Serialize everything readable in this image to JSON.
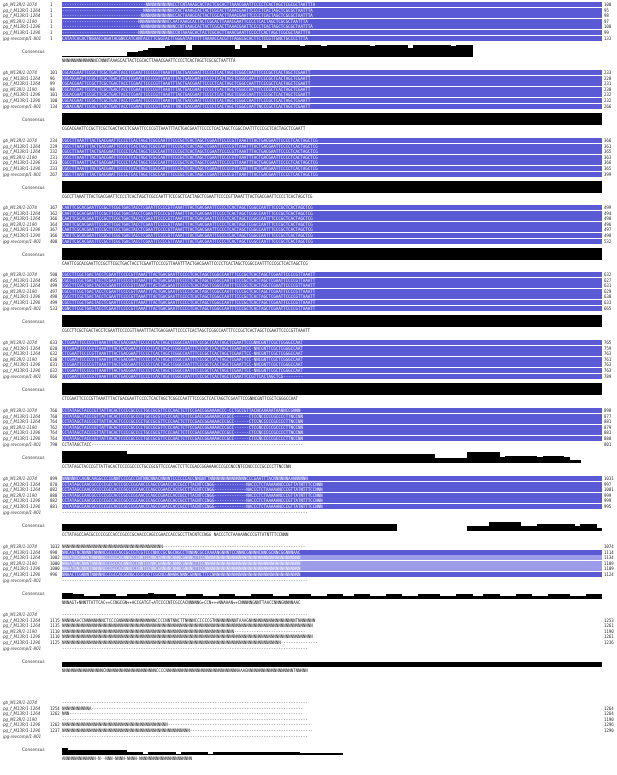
{
  "sequence_names": [
    "gb_M13R/1-1074",
    "pg_f_M13R/1-1264",
    "pg_f_M13R/1-1264",
    "pg_M13R/1-1190",
    "pg_f_M13R/1-1296",
    "pg_f_M13R/1-1290",
    "jpg-revcomp/1-801"
  ],
  "consensus_label": "Consensus",
  "colors": {
    "identity_dark": "#5a5ad6",
    "identity_light": "#9c9ce8",
    "consensus_bar": "#000000"
  },
  "blocks": [
    {
      "starts": [
        "1",
        "1",
        "1",
        "1",
        "1",
        "1",
        "1"
      ],
      "ends": [
        "100",
        "95",
        "98",
        "97",
        "100",
        "99",
        "133"
      ],
      "seqs": [
        "----------------------------------NNNNNNNNNNNCCTCNTAAAGCACTACTCGCACTTAAACGAATTCCCCTCACTAGCTCGCGCTAATTTA",
        "---------------------------------NNNNNNNNNNNNCCACTAAAGCACTACTCGCACTTAAACGAATTCCCCTCACTAGCTCGCGCTAATTTA",
        "--------------------------------NNNNNNNNNNNNNCCACTAAAGCACTACTCGCACTTAAACGAATTCCCCTCACTAGCTCGCGCTAATTTA",
        "-------------------------------NNNNNNNNNNNNCCAATAAAGCACTACTCGCACTTAAACGAATTCCCCTCACTAGCTCGCGCTAATTTA",
        "--------------------------------NNNNNNNNNNNNNNCCNTAAAGCACTACTCGCACTTAAACGAATTCCCCTCACTAGCTCGCGCTAATTTA",
        "-------------------------------NNNNNNNNNNNNNNCCNTAAAGCACTACTCGCACTTAAACGAATTCCCCTCACTAGCTCGCGCTAATTTA",
        "CATATCACACTNGAACCAGATACGNCCATCANTACCTTCGGTACTTGGGATAATTTTTAAAACCACGTTTAGGCGCACTTCTCCGTTGNCTGCCCCTTTA"
      ],
      "consensus_text": "NNNNNNNNNNNNNNCCNNNTAAAGCACTACTCGCACTTAAACGAATTCCCCTCACTAGCTCGCGCTAATTTA",
      "consensus_levels": [
        0.1,
        0.1,
        0.1,
        0.1,
        0.1,
        0.1,
        0.1,
        0.1,
        0.1,
        0.1,
        0.1,
        0.1,
        0.4,
        0.4,
        0.5,
        0.6,
        0.8,
        0.8,
        0.8,
        0.9,
        1,
        1,
        1,
        0.6,
        1,
        1,
        1,
        1,
        1,
        1,
        1,
        1,
        0.7,
        1,
        1,
        1,
        1,
        0.8,
        1,
        1,
        1,
        1,
        1,
        1,
        0.9,
        1,
        1,
        1,
        0.9,
        1,
        1,
        1,
        1,
        1,
        1,
        1,
        1,
        0.9,
        1,
        1,
        1,
        1,
        1,
        1,
        0.8,
        1,
        1,
        1,
        1,
        1,
        1,
        1,
        0.9,
        1,
        1,
        1
      ]
    },
    {
      "starts": [
        "101",
        "96",
        "99",
        "98",
        "101",
        "100",
        "134"
      ],
      "ends": [
        "233",
        "228",
        "231",
        "230",
        "232",
        "232",
        "266"
      ],
      "seqs": [
        "CGCACGAATTCCGCTTCGCTGACTACCTCGAATTCCCCGTTAAATTTACTGACGAATTCCCCTCACTAGCTCGGCCAATTTCCCGCTCACTAGCTCGAATT",
        "CGCACGAATTCCGCTTCGCTGACTACCTCGAATTCCCCGTTAAATTTACTGACGAATTCCCCTCACTAGCTCGGCCAATTTCCCGCTCACTAGCTCGAATT",
        "CGCACGAATTCCGCTTCGCTGACTACCTCGAATTCCCCGTTAAATTTACTGACGAATTCCCCTCACTAGCTCGGCCAATTTCCCGCTCACTAGCTCGAATT",
        "CGCACGAATTCCGCTTCGCTGACTACCTCGAATTCCCCGTTAAATTTACTGACGAATTCCCCTCACTAGCTCGGCCAATTTCCCGCTCACTAGCTCGAATT",
        "CGCACGAATTCCGCTTCGCTGACTACCTCGAATTCCCCGTTAAATTTACTGACGAATTCCCCTCACTAGCTCGGCCAATTTCCCGCTCACTAGCTCGAATT",
        "CGCACGAATTCCGCTTCGCTGACTACCTCGAATTCCCCGTTAAATTTACTGACGAATTCCCCTCACTAGCTCGGCCAATTTCCCGCTCACTAGCTCGAATT",
        "CGNACGNATTCCGCTTCGCTGACTACCTCGAATTCCCCGTTAAATTTNCTGACGAATTCCCCTCACTAGCTCGGCCAATTNCCCGCTCACTAGCTCGAATT"
      ],
      "consensus_text": "CGCACGAATTCCGCTTCGCTGACTACCTCGAATTCCCCGTTAAATTTACTGACGAATTCCCCTCACTAGCTCGGCCAATTTCCCGCTCACTAGCTCGAATT",
      "consensus_levels": [
        1
      ]
    },
    {
      "starts": [
        "234",
        "229",
        "232",
        "231",
        "233",
        "233",
        "267"
      ],
      "ends": [
        "366",
        "361",
        "365",
        "363",
        "366",
        "365",
        "399"
      ],
      "seqs": [
        "CGCCTTAAATTTACTGACGAATTCCCCTCACTAGCTCGCCAATTTCCCGCTCACTAGCTCGAATTCCCCGTTAAATTTACTGACGAATTCCCCTCACTAGCTCG",
        "CGCCTTAAATTTACTGACGAATTCCCCTCACTAGCTCGCCAATTTCCCGCTCACTAGCTCGAATTCCCCGTTAAATTTACTGACGAATTCCCCTCACTAGCTCG",
        "CGCCTTAAATTTACTGACGAATTCCCCTCACTAGCTCGCCAATTTCCCGCTCACTAGCTCGAATTCCCCGTTAAATTTACTGACGAATTCCCCTCACTAGCTCG",
        "CGCCTTAAATTTACTGACGAATTCCCCTCACTAGCTCGCCAATTTCCCGCTCACTAGCTCGAATTCCCCGTTAAATTTACTGACGAATTCCCCTCACTAGCTCG",
        "CGCCTTAAATTTACTGACGAATTCCCCTCACTAGCTCGCCAATTTCCCGCTCACTAGCTCGAATTCCCCGTTAAATTTACTGACGAATTCCCCTCACTAGCTCG",
        "CGCCTTAAATTTACTGACGAATTCCCCTCACTAGCTCGCCAATTTCCCGCTCACTAGCTCGAATTCCCCGTTAAATTTACTGACGAATTCCCCTCACTAGCTCG",
        "CGCCTTAAATTTACTGACGAATTCCCCTCACTAGCTCGCCAATTTCCCGCTCACTAGCTCGAATTCCCCGTTAAATTTACTGACGAATTCCCCTCACTAGCTCG"
      ],
      "consensus_text": "CGCCTTAAATTTACTGACGAATTCCCCTCACTAGCTCGCCAATTTCCCGCTCACTAGCTCGAATTCCCCGTTAAATTTACTGACGAATTCCCCTCACTAGCTCG",
      "consensus_levels": [
        1
      ]
    },
    {
      "starts": [
        "367",
        "362",
        "366",
        "364",
        "367",
        "366",
        "400"
      ],
      "ends": [
        "499",
        "494",
        "498",
        "496",
        "497",
        "498",
        "532"
      ],
      "seqs": [
        "CAATTCGCACGAATTCCGCTTCGCTGACTACCTCGAATTCCCCGTTAAATTTACTGACGAATTCCCCTCACTAGCTCGGCCAATTTCCCGCTCACTAGCTCG",
        "CAATTCGCACGAATTCCGCTTCGCTGACTACCTCGAATTCCCCGTTAAATTTACTGACGAATTCCCCTCACTAGCTCGGCCAATTTCCCGCTCACTAGCTCG",
        "CAATTCGCACGAATTCCGCTTCGCTGACTACCTCGAATTCCCCGTTAAATTTACTGACGAATTCCCCTCACTAGCTCGGCCAATTTCCCGCTCACTAGCTCG",
        "CAATTCGCACGAATTCCGCTTCGCTGACTACCTCGAATTCCCCGTTAAATTTACTGACGAATTCCCCTCACTAGCTCGGCCAATTTCCCGCTCACTAGCTCG",
        "CAATTCGCACGAATTCCGCTTCGCTGACTACCTCGAATTCCCCGTTAAATTTACTGACGAATTCCCCTCACTAGCTCGGCCAATTTCCCGCTCACTAGCTCG",
        "CAATTCGCACGAATTCCGCTTCGCTGACTACCTCGAATTCCCCGTTAAATTTACTGACGAATTCCCCTCACTAGCTCGGCCAATTTCCCGCTCACTAGCTCG",
        "CAATTCGCACGAATTCCGCTTCGCTGACTACCTCGAATTCCCCGTTAAATTTACTGACGAATTCCCCTCACTAGCTCGGCCAATTTCCCGCTCACTAGCTCG"
      ],
      "consensus_text": "CAATTCGCACGAATTCCGCTTCGCTGACTACCTCGAATTCCCCGTTAAATTTACTGACGAATTCCCCTCACTAGCTCGGCCAATTTCCCGCTCACTAGCTCG",
      "consensus_levels": [
        1
      ]
    },
    {
      "starts": [
        "500",
        "495",
        "499",
        "497",
        "498",
        "499",
        "533"
      ],
      "ends": [
        "632",
        "627",
        "631",
        "629",
        "630",
        "631",
        "665"
      ],
      "seqs": [
        "CGCCTTCGCTGACTACCTCGAATTCCCCGTTAAATTTACTGACGAATTCCCCTCACTAGCTCGGCCAATTTCCCGCTCACTAGCTCGAATTCCCCGTTAAATT",
        "CGCCTTCGCTGACTACCTCGAATTCCCCGTTAAATTTACTGACGAATTCCCCTCACTAGCTCGGCCAATTTCCCGCTCACTAGCTCGAATTCCCCGTTAAATT",
        "CGCCTTCGCTGACTACCTCGAATTCCCCGTTAAATTTACTGACGAATTCCCCTCACTAGCTCGGCCAATTTCCCGCTCACTAGCTCGAATTCCCCGTTAAATT",
        "CGCCTTCGCTGACTACCTCGAATTCCCCGTTAAATTTACTGACGAATTCCCCTCACTAGCTCGGCCAATTTCCCGCTCACTAGCTCGAATTCCCCGTTAAATT",
        "CGCCTTCGCTGACTACCTCGAATTCCCCGTTAAATTTACTGACGAATTCCCCTCACTAGCTCGGCCAATTTCCCGCTCACTAGCTCGAATTCCCCGTTAAATT",
        "CGCCTTCGCTGACTACCTCGAATTCCCCGTTAAATTTACTGACGAATTCCCCTCACTAGCTCGGCCAATTTCCCGCTCACTAGCTCGAATTCCCCGTTAAATT",
        "CGNCTTCGCTGACTACCTCGAATTCCCCGTTAAATTTACTGACGAATTCCCCTCACTAGCTCGGCCAATTTCCCGCTCACTAGCTCGAATTCCCCGTTAAATT"
      ],
      "consensus_text": "CGCCTTCGCTGACTACCTCGAATTCCCCGTTAAATTTACTGACGAATTCCCCTCACTAGCTCGGCCAATTTCCCGCTCACTAGCTCGAATTCCCCGTTAAATT",
      "consensus_levels": [
        1
      ]
    },
    {
      "starts": [
        "633",
        "628",
        "632",
        "630",
        "631",
        "632",
        "666"
      ],
      "ends": [
        "765",
        "759",
        "763",
        "761",
        "763",
        "763",
        "789"
      ],
      "seqs": [
        "CTCGAATTCCCCGTTAAATTTACTGACGAATTCCCCTCACTAGCTCGGCCAATTTCCCGCTCACTAGCTCGAATTCCGNNCGNTTCGCTCGGGCCAAT",
        "CTCGAATTCCCCGTTAAATTTACTGACGAATTCCCCTCACTAGCTCGGCCAATTTCCCGCTCACTAGCTCGAATTCC-NNCGNTTCGCTCGGGCCAAT",
        "CTCGAATTCCCCGTTAAATTTACTGACGAATTCCCCTCACTAGCTCGGCCAATTTCCCGCTCACTAGCTCGAATTCC-NNCGNTTCGCTCGGGCCAAT",
        "CTCGAATTCCCCGTTAAATTTACTGACGAATTCCCCTCACTAGCTCGGCCAATTTCCCGCTCACTAGCTCGAATTCC-NNCGNTTCGCTCGGGCCAAT",
        "CTCGAATTCCCCGTTAAATTTACTGACGAATTCCCCTCACTAGCTCGGCCAATTTCCCGCTCACTAGCTCGAATTCC-NNCGNTTCGCTCGGGCCAAT",
        "CTCGAATTCCCCGTTAAATTTACTGACGAATTCCCCTCACTAGCTCGGCCAATTTCCCGCTCACTAGCTCGAATTCC-NNCGNTTCGCTCGGGCCAAT",
        "CTCGAATTCCCCGTTAAATTTACTGACGAATTCCCCTCACTAGCTCGGCCAATTTCCCGCTCACTAGCTCGAATTCCGTTCACTAGCTCG--------"
      ],
      "consensus_text": "CTCGAATTCCCCGTTAAATTTACTGACGAATTCCCCTCACTAGCTCGGCCAATTTCCCGCTCACTAGCTCGAATTCCGNNCGNTTCGCTCGGGCCAAT",
      "consensus_levels": [
        1
      ]
    },
    {
      "starts": [
        "766",
        "760",
        "764",
        "762",
        "764",
        "764",
        "790"
      ],
      "ends": [
        "898",
        "877",
        "881",
        "879",
        "881",
        "880",
        "801"
      ],
      "seqs": [
        "CCTATAGCTACCCGTTATTACACTCCCCGCCCCTGCCGCGTTCCCAACTCTTCCGACCGGAAAACCC-CCTGCCGTTACNCAAAAATAANNCCGNNN",
        "CCTATAGCTACCCGTTATTACACTCCCCGCCCCTGCCGCGTTCCCAACTCTTCCGACCGGAAAACCCGCC------CTCCNCCCCCGCCCCTTNCCNN",
        "CCTATAGCTACCCGTTATTACACTCCCCGCCCCTGCCGCGTTCCCAACTCTTCCGACCGGAAAACCCGCC------CTCCNCCCCCGCCCCTTNCCNN",
        "CCTATAGCTACCCGTTATTACACTCCCCGCCCCTGCCGCGTTCCCAACTCTTCCGACCGGAAAACCCGCC------CTCCNCCCCCGCCCCTTNCCNN",
        "CCTATAGCTACCCGTTATTACACTCCCCGCCCCTGCCGCGTTCCCAACTCTTCCGACCGGAAAACCCGCC------CTCCNCCCCCGCCCCTTNCCNN",
        "CCTATAGCTACCCGTTATTACACTCCCCGCCCCTGCCGCGTTCCCAACTCTTCCGACCGGAAAACCCGCC------CTCCNCCCCCGCCCCTTNCCNN",
        "CCTATAGCTACC--------------------------------------------------------------------------------------"
      ],
      "consensus_text": "CCTATAGCTACCCGTTATTACACTCCCCGCCCCTGCCGCGTTCCCAACTCTTCCGACCGGAAAACCCGCCNCCNTCCNCCCCCGCCCCTTNCCNN",
      "consensus_levels": [
        1,
        1,
        1,
        1,
        1,
        1,
        1,
        1,
        1,
        1,
        1,
        1,
        0.8,
        0.8,
        0.8,
        0.8,
        0.8,
        0.8,
        0.8,
        0.8,
        0.8,
        0.8,
        0.8,
        0.8,
        0.8,
        0.8,
        0.8,
        0.8,
        0.8,
        0.8,
        0.8,
        0.8,
        0.8,
        0.8,
        0.8,
        0.8,
        0.8,
        0.8,
        0.8,
        0.8,
        0.8,
        0.8,
        0.8,
        0.8,
        0.8,
        0.8,
        0.8,
        0.8,
        0.8,
        0.8,
        0.8,
        0.8,
        0.8,
        0.8,
        0.8,
        0.8,
        0.8,
        0.8,
        0.8,
        0.8,
        0.8,
        0.8,
        0.8,
        0.8,
        0.8,
        0.8,
        0.8,
        0.8,
        0.8,
        0.4,
        0.4,
        0.4,
        0.4,
        0.4,
        0.4,
        0.9,
        0.9,
        0.9,
        0.9,
        0.9,
        0.9,
        0.5,
        0.6,
        0.6,
        0.6,
        0.6,
        0.6,
        0.6,
        0.5,
        0.6,
        0.6,
        0.6,
        0.6,
        0.5,
        0.3,
        0.3
      ]
    },
    {
      "starts": [
        "899",
        "878",
        "882",
        "880",
        "882",
        "881",
        ""
      ],
      "ends": [
        "1031",
        "997",
        "1001",
        "999",
        "999",
        "995",
        ""
      ],
      "seqs": [
        "NNNNNNCCAGNCAAGGCCCCGNNTCCCGCCCNTNNCNNACNNNNTCCCCCCACCNNGNTTNNNNNNNNNNNNNNNCCCGAATTTACNNNNNNAANNNNNN",
        "CCTATAGCCAACGCCCCCGCCACCCGCCCGCAACCCAGCCGAACCACCGCCTTACNTCCNGG-------------NACCCTCTAAAAANCCCGTTATNTTTCCNNN",
        "CCTATAGCCAACGCCCCCGCCACCCGCCCGCAACCCAGCCGAACCACCGCCTTACNTCCNGG-------------NACCCTCTAAAAANCCCGTTATNTTTCCNNN",
        "CCTATAGCCAACGCCCCCGCCACCCGCCCGCAACCCAGCCGAACCACCGCCTTACNTCCNGG-------------NACCCTCTAAAAANCCCGTTATNTTTCCNNN",
        "CCTATAGCCAACGCCCCCGCCACCCGCCCGCAACCCAGCCGAACCACCGCCTTACNTCCNGG-------------NACCCTCTAAAAANCCCGTTATNTTTCCNNN",
        "CCTATAGCCAACGCCCCCGCCACCCGCCCGCAACCCAGCCGAACCACCGCCTTACNTCCNGG-------------NACCCTCTAAAAANCCCGTTATNTTTCCNNN",
        "----------------------------------------------------------------------------------------------------"
      ],
      "consensus_text": "CCTATAGCCAACGCCCCCGCCACCCGCCCGCAACCCAGCCGAACCACCGCCTTACNTCCNGG  NACCCTCTAAAAANCCCGTTATNTTTCCNNN",
      "consensus_levels": [
        0.6,
        0.6,
        0.6,
        0.6,
        0.6,
        0.6,
        0.6,
        0.6,
        0.6,
        0.6,
        0.6,
        0.6,
        0.6,
        0.6,
        0.6,
        0.6,
        0.6,
        0.6,
        0.6,
        0.6,
        0.6,
        0.6,
        0.6,
        0.6,
        0.6,
        0.6,
        0.6,
        0.6,
        0.6,
        0.6,
        0.6,
        0.6,
        0.6,
        0.6,
        0.6,
        0.6,
        0.6,
        0.6,
        0.6,
        0.6,
        0.6,
        0.6,
        0.6,
        0.6,
        0.6,
        0.6,
        0.6,
        0.6,
        0.6,
        0.6,
        0.6,
        0.6,
        0.6,
        0.6,
        0.6,
        0.6,
        0.6,
        0.6,
        0.6,
        0.6,
        0.6,
        0.6,
        0,
        0,
        0,
        0,
        0,
        0,
        0,
        0,
        0,
        0,
        0,
        0,
        0,
        0.4,
        0.4,
        0.4,
        0.4,
        0.8,
        0.8,
        0.8,
        0.8,
        0.8,
        0.8,
        0.4,
        0.4,
        0.4,
        0.6,
        0.6,
        0.6,
        0.6,
        0.6,
        0.6,
        0.6,
        0.4,
        0.6,
        0.6,
        0.6,
        0.3
      ]
    },
    {
      "starts": [
        "1032",
        "998",
        "1002",
        "1000",
        "1000",
        "996",
        ""
      ],
      "ends": [
        "1074",
        "1114",
        "1134",
        "1109",
        "1109",
        "1124",
        ""
      ],
      "seqs": [
        "NNNNNNNNNNNNNNNNNNNNNNNNNNNNNNNNNNNNNNNNN----------------------------------------------------------",
        "NNCAGTNCNNNNTNNNNCGCCCCACCGCCGTCGTCCCNNCCGCNGCNGCCTNNNNCGCCAAAANGNNNTCCNNNCGNNNNCNNCGCNNCGGNNNAAC",
        "NNAATNCNNNNTNNNNNCCCGCCACNNNCCCNNTCCNNCGNNNNCNNNCGNNNCTTCCNNNNNNNNNNNNNNNNNNNNNNNNNNNNNNNNNNNNNNN",
        "NNAATNNCNNNTNNNNNCCCGCCACNNNCCCNNTCCNNCGNNNNCNNNCGNNNCTTCCNNNNNNNNNNNNNNNNNNNNNNNNNNNNNNNNNNNNNNN",
        "NNAATNNCNNNTNNNNNCCCGCCACNNNCCCNNTCCNNCGNNNNCNNNCGNNNCTTCCNNNNNNNNNNNNNNNNNNNNNNNNNNNNNNNNNNNNNNN",
        "NNAACTCGNNNTNNNNNCCCGCCACGCNGCCCGCCCTCGCNCGNNNNCNNNCGNNNCTTCCNNNNNNNNNNNNNNNNNNNNNNNNNNNNNNNNNNNN",
        "----------------------------------------------------------------------------------------------------"
      ],
      "consensus_text": "NNNAGT+NNNTTATTCAC++CCNGCGN++ACCGATGT+ATCCCCNTCGCCACNNNNNG+CCN+++NNAAAN++CNNNNNGNNTTAACCNNNGNNNNAAC",
      "consensus_levels": [
        0.5,
        0.5,
        0.4,
        0.4,
        0.3,
        0.3,
        0.3,
        0.4,
        0.4,
        0.4,
        0.3,
        0.3,
        0.4,
        0.4,
        0.4,
        0.4,
        0.5,
        0.4,
        0.4,
        0.4,
        0.4,
        0.3,
        0.3,
        0.4,
        0.4,
        0.4,
        0.3,
        0.3,
        0.3,
        0.4,
        0.4,
        0.4,
        0.3,
        0.3,
        0.3,
        0.4,
        0.4,
        0.4,
        0.4,
        0.3,
        0.3,
        0.3,
        0.4,
        0.4,
        0.4,
        0.4,
        0.3,
        0.3,
        0.3,
        0.4,
        0.4,
        0.4,
        0.3,
        0.3,
        0.4,
        0.4,
        0.4,
        0.3,
        0.3,
        0.3,
        0.4,
        0.4,
        0.4,
        0.3,
        0.3,
        0.3,
        0.4,
        0.4,
        0.4,
        0.4,
        0.3,
        0.3,
        0.3,
        0.4,
        0.4,
        0.4,
        0.3,
        0.3,
        0.4,
        0.4,
        0.4,
        0.3,
        0.3,
        0.3,
        0.4,
        0.4,
        0.4,
        0.3,
        0.3,
        0.3,
        0.4,
        0.4,
        0.4,
        0.4,
        0.3,
        0.3,
        0.3,
        0.4,
        0.4,
        0.4
      ]
    },
    {
      "starts": [
        "",
        "1115",
        "1135",
        "1110",
        "1110",
        "1125",
        ""
      ],
      "ends": [
        "",
        "1253",
        "1261",
        "1190",
        "1261",
        "1236",
        ""
      ],
      "seqs": [
        "----------------------------------------------------------------------------------------------------",
        "NNNNNAACCNNNNNNNNCTCCCGNNNNNNNNNNNNNNNCCCCNNTNNCTTNNNNCCCCCCGTNNNNNNNNNTAAAGNNNNNNNNNNNNNNNNNNNTNNNNNNN",
        "NNNNNNNNNNNNNNNNNNNNNNNNNNNNNNNNNNNNNNNNNNNNNNNNNNNNNNNNNNNNNNNNNNNNNNNNNNNNNNNNNNNNNNNNNNNNNNNNNNNNNN",
        "NNNNNNNNNNNNNNNNNNNNNNNNNNNNNNNNNNNNNNNNNNNNNNNNNNNNNNNNNNNNNNNNNNNNNN-----------------------------",
        "NNNNNNNNNNNNNNNNNNNNNNNNNNNNNNNNNNNNNNNNNNNNNNNNNNNNNNNNNNNNNNNNNNNNNNNNNNNNNNNNNNNNNNNNNNNNNNNNNNNNNN",
        "NNNNNNNNNNNNNNNNNNNNNNNNNNNNNNNNNNNNNNNNNNNNNNNNNNNNNNNNNNNNNNNNNNNNNNNNNNNNNNNNNNNNNNNNN---------------",
        "----------------------------------------------------------------------------------------------------"
      ],
      "consensus_text": "NNNNNNNNNNNNNNNNNCNNNNNNNNNNNNNNNNNNNNNCCCCNNNNNNNNNNNNNNNNNNNNNNNNNNNNNNAAAGNNNNNNNNNNNNNNNNNNNTNNNNN",
      "consensus_levels": [
        0.4
      ]
    },
    {
      "starts": [
        "",
        "1254",
        "1262",
        "",
        "1262",
        "1237",
        ""
      ],
      "ends": [
        "",
        "1264",
        "1264",
        "1190",
        "1296",
        "1290",
        ""
      ],
      "seqs": [
        "----------------------------------------------------------------------------------------------------",
        "NNNNNNNNNNNA--------------------------------------------------------------------------------------",
        "NNN-----------------------------------------------------------------------------------------------",
        "----------------------------------------------------------------------------------------------------",
        "NNNNNNNNNNNNNNNNNNNNNNNNNNNNNNNNNNNNNNNNNNN----------------------------------------------------------",
        "NNNNNNNNNNNNNNNNNNNNNNNNNNNNNNNNNNNNNNNNNNNNNNNNNNNN--------------------------------------------------",
        "----------------------------------------------------------------------------------------------------"
      ],
      "consensus_text": "ANNNNNNNNNNNNN-N--NNN-NNNN-NNNN-NNNNNNNNNNNNNNNNNNNNNN",
      "consensus_levels": [
        0.6,
        0.4,
        0.4,
        0.4,
        0.4,
        0.4,
        0.4,
        0.4,
        0.4,
        0.4,
        0.4,
        0.4,
        0.3,
        0.3,
        0.3,
        0.1,
        0.3,
        0.3,
        0.3,
        0.3,
        0.3,
        0.1,
        0.3,
        0.3,
        0.3,
        0.3,
        0.3,
        0.1,
        0.3,
        0.3,
        0.3,
        0.3,
        0.3,
        0.3,
        0.3,
        0.3,
        0.3,
        0.3,
        0.3,
        0.3,
        0.3,
        0.3,
        0.3,
        0.3,
        0.2,
        0.2,
        0.2,
        0.2,
        0.2,
        0.2,
        0.2,
        0.2
      ]
    }
  ]
}
